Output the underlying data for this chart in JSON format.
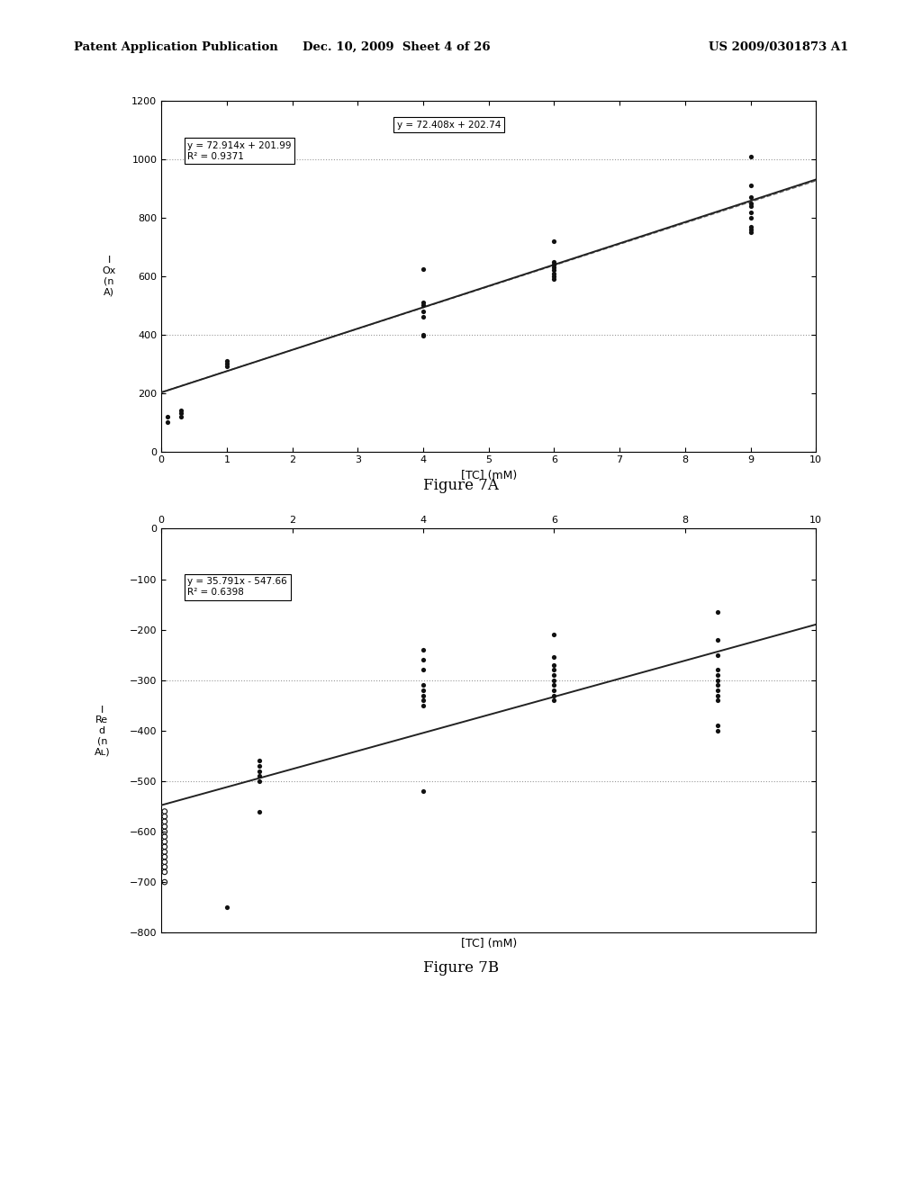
{
  "fig7a": {
    "xlabel": "[TC] (mM)",
    "ylabel": "I\nOx\n(n\nA)",
    "xlim": [
      0,
      10
    ],
    "ylim": [
      0,
      1200
    ],
    "xticks": [
      0,
      1,
      2,
      3,
      4,
      5,
      6,
      7,
      8,
      9,
      10
    ],
    "yticks": [
      0,
      200,
      400,
      600,
      800,
      1000,
      1200
    ],
    "eq1_text": "y = 72.914x + 201.99\nR² = 0.9371",
    "eq2_text": "y = 72.408x + 202.74",
    "slope1": 72.914,
    "intercept1": 201.99,
    "slope2": 72.408,
    "intercept2": 202.74,
    "hline1": 400,
    "hline2": 1000,
    "scatter_x": [
      0.1,
      0.1,
      0.3,
      0.3,
      0.3,
      1.0,
      1.0,
      1.0,
      4.0,
      4.0,
      4.0,
      4.0,
      4.0,
      4.0,
      4.0,
      6.0,
      6.0,
      6.0,
      6.0,
      6.0,
      6.0,
      6.0,
      6.0,
      9.0,
      9.0,
      9.0,
      9.0,
      9.0,
      9.0,
      9.0,
      9.0,
      9.0
    ],
    "scatter_y": [
      100,
      120,
      120,
      130,
      140,
      290,
      300,
      310,
      395,
      400,
      460,
      480,
      500,
      510,
      625,
      590,
      600,
      610,
      620,
      630,
      640,
      650,
      720,
      750,
      760,
      770,
      800,
      820,
      840,
      850,
      870,
      910
    ],
    "scatter2_x": [
      9.0
    ],
    "scatter2_y": [
      1010
    ]
  },
  "fig7b": {
    "xlabel": "[TC] (mM)",
    "ylabel": "I\nRe\nd\n(n\nAʟ)",
    "xlim": [
      0,
      10
    ],
    "ylim": [
      -800,
      0
    ],
    "xticks": [
      0,
      2,
      4,
      6,
      8,
      10
    ],
    "yticks": [
      -800,
      -700,
      -600,
      -500,
      -400,
      -300,
      -200,
      -100,
      0
    ],
    "eq_text": "y = 35.791x - 547.66\nR² = 0.6398",
    "slope": 35.791,
    "intercept": -547.66,
    "hline1": -300,
    "hline2": -500,
    "scatter_filled_x": [
      1.5,
      1.5,
      1.5,
      1.5,
      1.5,
      1.5,
      4.0,
      4.0,
      4.0,
      4.0,
      4.0,
      4.0,
      4.0,
      4.0,
      4.0,
      6.0,
      6.0,
      6.0,
      6.0,
      6.0,
      6.0,
      6.0,
      6.0,
      6.0,
      6.0,
      8.5,
      8.5,
      8.5,
      8.5,
      8.5,
      8.5,
      8.5,
      8.5,
      8.5,
      8.5,
      8.5,
      8.5,
      1.0
    ],
    "scatter_filled_y": [
      -460,
      -470,
      -480,
      -490,
      -500,
      -560,
      -240,
      -260,
      -280,
      -310,
      -320,
      -330,
      -340,
      -350,
      -520,
      -210,
      -255,
      -270,
      -280,
      -290,
      -300,
      -310,
      -320,
      -330,
      -340,
      -165,
      -220,
      -250,
      -280,
      -290,
      -300,
      -310,
      -320,
      -330,
      -340,
      -390,
      -400,
      -750
    ],
    "open_x": [
      0.05,
      0.05,
      0.05,
      0.05,
      0.05,
      0.05,
      0.05,
      0.05,
      0.05,
      0.05,
      0.05,
      0.05,
      0.05,
      0.05
    ],
    "open_y": [
      -560,
      -570,
      -580,
      -590,
      -600,
      -610,
      -620,
      -630,
      -640,
      -650,
      -660,
      -670,
      -680,
      -700
    ]
  },
  "header_left": "Patent Application Publication",
  "header_mid": "Dec. 10, 2009  Sheet 4 of 26",
  "header_right": "US 2009/0301873 A1",
  "fig7a_caption": "Figure 7A",
  "fig7b_caption": "Figure 7B",
  "bg_color": "#ffffff",
  "dot_color": "#111111",
  "grid_color": "#999999"
}
